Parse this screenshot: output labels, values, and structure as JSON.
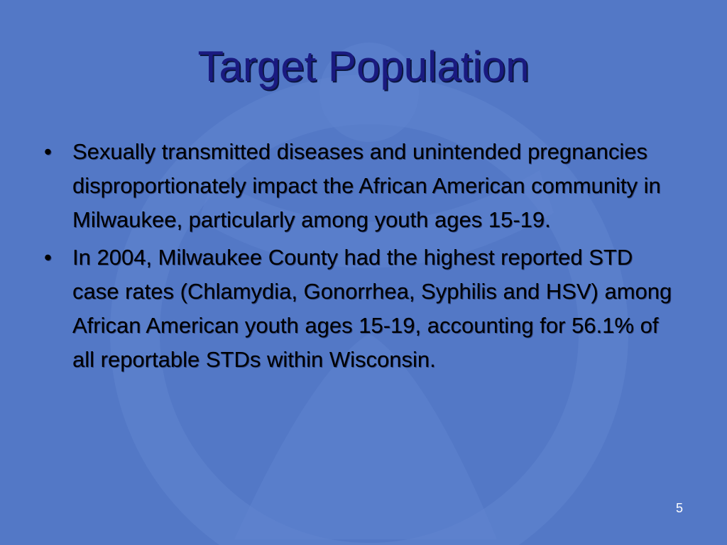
{
  "slide": {
    "title": "Target Population",
    "bullet_symbol": "•",
    "bullets": [
      "Sexually transmitted diseases and unintended pregnancies disproportionately impact the African American community in Milwaukee, particularly among youth ages 15-19.",
      "In 2004, Milwaukee County had the highest reported STD case rates (Chlamydia, Gonorrhea, Syphilis and HSV) among African American youth ages 15-19, accounting for 56.1% of all reportable STDs within Wisconsin."
    ],
    "page_number": "5"
  },
  "colors": {
    "background": "#5378c6",
    "title": "#1a1a80",
    "body_text": "#000000",
    "page_number": "#ffffff"
  }
}
